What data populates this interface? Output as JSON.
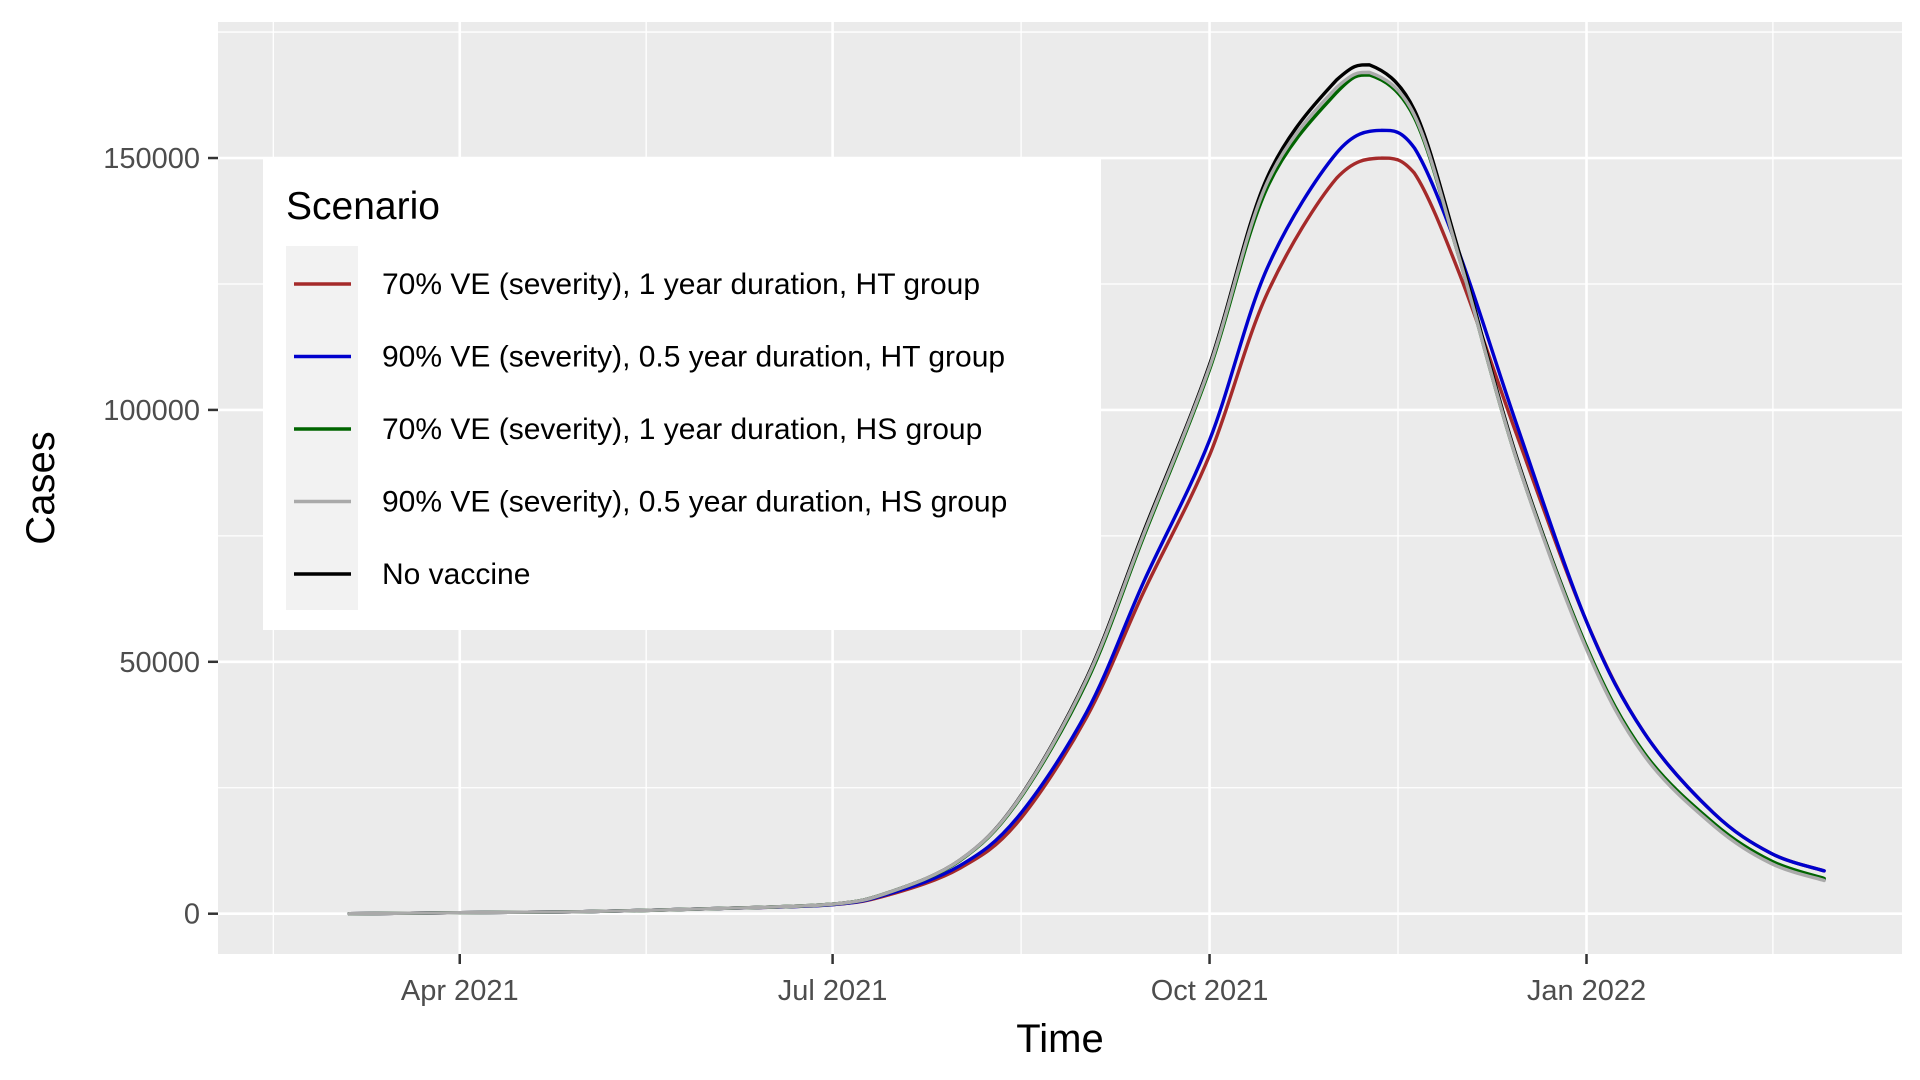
{
  "chart_data": {
    "type": "line",
    "title": "",
    "xlabel": "Time",
    "ylabel": "Cases",
    "x_ticks": [
      "Apr 2021",
      "Jul 2021",
      "Oct 2021",
      "Jan 2022"
    ],
    "x_tick_dates": [
      "2021-04-01",
      "2021-07-01",
      "2021-10-01",
      "2022-01-01"
    ],
    "xlim": [
      "2021-02-01",
      "2022-03-19"
    ],
    "y_ticks": [
      "0",
      "50000",
      "100000",
      "150000"
    ],
    "y_tick_values": [
      0,
      50000,
      100000,
      150000
    ],
    "ylim": [
      -8000,
      177000
    ],
    "grid": true,
    "legend": {
      "title": "Scenario",
      "placement": "top-left"
    },
    "colors": {
      "panel": "#ebebeb",
      "grid": "#ffffff"
    },
    "series": [
      {
        "name": "70% VE (severity), 1 year duration, HT group",
        "color": "#a52a2a",
        "x": [
          "2021-03-05",
          "2021-04-01",
          "2021-05-01",
          "2021-06-01",
          "2021-07-01",
          "2021-07-15",
          "2021-08-01",
          "2021-08-15",
          "2021-09-01",
          "2021-09-15",
          "2021-10-01",
          "2021-10-15",
          "2021-11-01",
          "2021-11-12",
          "2021-11-20",
          "2021-12-01",
          "2021-12-15",
          "2022-01-01",
          "2022-01-15",
          "2022-02-01",
          "2022-02-15",
          "2022-02-28"
        ],
        "y": [
          0,
          200,
          400,
          1000,
          1800,
          3800,
          9000,
          18000,
          39000,
          64000,
          91000,
          123000,
          146000,
          150000,
          147000,
          127000,
          95000,
          58000,
          36000,
          20000,
          12000,
          8500
        ]
      },
      {
        "name": "90% VE (severity), 0.5 year duration, HT group",
        "color": "#0000cd",
        "x": [
          "2021-03-05",
          "2021-04-01",
          "2021-05-01",
          "2021-06-01",
          "2021-07-01",
          "2021-07-15",
          "2021-08-01",
          "2021-08-15",
          "2021-09-01",
          "2021-09-15",
          "2021-10-01",
          "2021-10-15",
          "2021-11-01",
          "2021-11-12",
          "2021-11-20",
          "2021-12-01",
          "2021-12-15",
          "2022-01-01",
          "2022-01-15",
          "2022-02-01",
          "2022-02-15",
          "2022-02-28"
        ],
        "y": [
          0,
          200,
          400,
          1000,
          1800,
          4000,
          9500,
          19000,
          40000,
          66000,
          94000,
          128000,
          151000,
          155500,
          152000,
          131000,
          97000,
          58000,
          36000,
          20000,
          12000,
          8500
        ]
      },
      {
        "name": "70% VE (severity), 1 year duration, HS group",
        "color": "#006400",
        "x": [
          "2021-03-05",
          "2021-04-01",
          "2021-05-01",
          "2021-06-01",
          "2021-07-01",
          "2021-07-15",
          "2021-08-01",
          "2021-08-15",
          "2021-09-01",
          "2021-09-15",
          "2021-10-01",
          "2021-10-15",
          "2021-11-01",
          "2021-11-09",
          "2021-11-20",
          "2021-12-01",
          "2021-12-15",
          "2022-01-01",
          "2022-01-15",
          "2022-02-01",
          "2022-02-15",
          "2022-02-28"
        ],
        "y": [
          0,
          200,
          400,
          1000,
          1900,
          4300,
          10500,
          22000,
          46000,
          75000,
          108000,
          144000,
          163000,
          166500,
          158000,
          130000,
          90000,
          53000,
          32000,
          18000,
          10500,
          7000
        ]
      },
      {
        "name": "90% VE (severity), 0.5 year duration, HS group",
        "color": "#aaaaaa",
        "x": [
          "2021-03-05",
          "2021-04-01",
          "2021-05-01",
          "2021-06-01",
          "2021-07-01",
          "2021-07-15",
          "2021-08-01",
          "2021-08-15",
          "2021-09-01",
          "2021-09-15",
          "2021-10-01",
          "2021-10-15",
          "2021-11-01",
          "2021-11-09",
          "2021-11-20",
          "2021-12-01",
          "2021-12-15",
          "2022-01-01",
          "2022-01-15",
          "2022-02-01",
          "2022-02-15",
          "2022-02-28"
        ],
        "y": [
          0,
          200,
          400,
          1000,
          1900,
          4300,
          10600,
          22200,
          46500,
          75500,
          108500,
          145000,
          164000,
          167000,
          158500,
          130000,
          90000,
          52500,
          31500,
          17500,
          10000,
          6600
        ]
      },
      {
        "name": "No vaccine",
        "color": "#000000",
        "x": [
          "2021-03-05",
          "2021-04-01",
          "2021-05-01",
          "2021-06-01",
          "2021-07-01",
          "2021-07-15",
          "2021-08-01",
          "2021-08-15",
          "2021-09-01",
          "2021-09-15",
          "2021-10-01",
          "2021-10-15",
          "2021-11-01",
          "2021-11-09",
          "2021-11-20",
          "2021-12-01",
          "2021-12-15",
          "2022-01-01",
          "2022-01-15",
          "2022-02-01",
          "2022-02-15",
          "2022-02-28"
        ],
        "y": [
          0,
          200,
          400,
          1000,
          1900,
          4300,
          10600,
          22300,
          46800,
          76000,
          109000,
          146000,
          165500,
          168500,
          159500,
          131000,
          90500,
          53000,
          31800,
          17700,
          10200,
          6800
        ]
      }
    ]
  }
}
